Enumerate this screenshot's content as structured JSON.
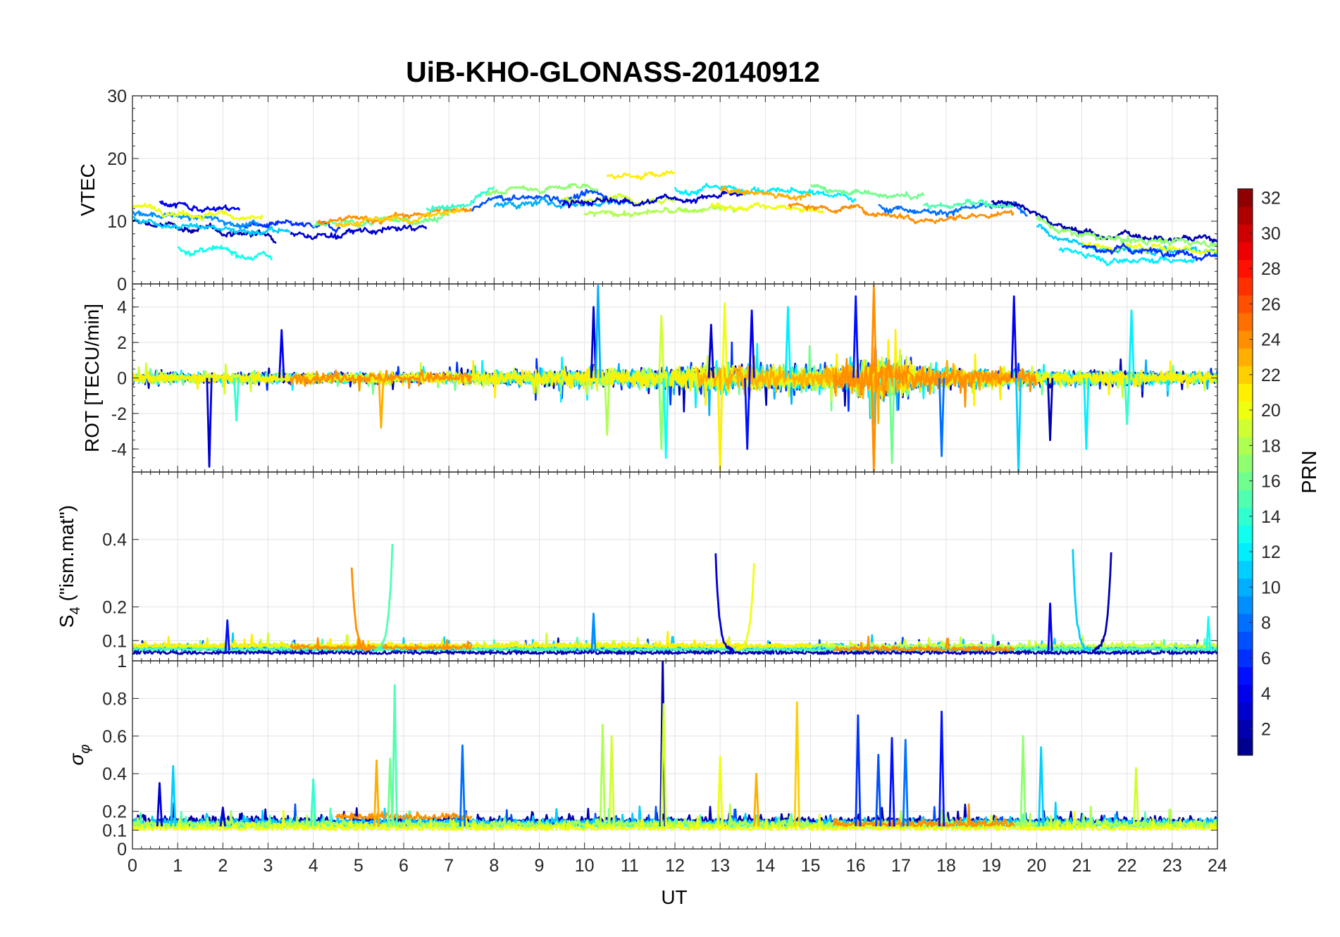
{
  "chart_data": {
    "type": "line",
    "title": "UiB-KHO-GLONASS-20140912",
    "x": {
      "label": "UT",
      "range": [
        0,
        24
      ],
      "ticks": [
        0,
        1,
        2,
        3,
        4,
        5,
        6,
        7,
        8,
        9,
        10,
        11,
        12,
        13,
        14,
        15,
        16,
        17,
        18,
        19,
        20,
        21,
        22,
        23,
        24
      ],
      "tick_labels": [
        "0",
        "1",
        "2",
        "3",
        "4",
        "5",
        "6",
        "7",
        "8",
        "9",
        "10",
        "11",
        "12",
        "13",
        "14",
        "15",
        "16",
        "17",
        "18",
        "19",
        "20",
        "21",
        "22",
        "23",
        "24"
      ]
    },
    "grid": true,
    "panels": [
      {
        "id": "vtec",
        "ylabel": "VTEC",
        "ylim": [
          0,
          30
        ],
        "yticks": [
          0,
          10,
          20,
          30
        ],
        "ytick_labels": [
          "0",
          "10",
          "20",
          "30"
        ],
        "baseline": [
          [
            0,
            11
          ],
          [
            2,
            9.5
          ],
          [
            4,
            8.5
          ],
          [
            6,
            9.5
          ],
          [
            7.5,
            11
          ],
          [
            8,
            13
          ],
          [
            10,
            13.5
          ],
          [
            12,
            14
          ],
          [
            13,
            14.5
          ],
          [
            14,
            14
          ],
          [
            16,
            13
          ],
          [
            17,
            12
          ],
          [
            18,
            11.5
          ],
          [
            19.5,
            12
          ],
          [
            20.5,
            8
          ],
          [
            21.5,
            6.5
          ],
          [
            22.5,
            6.5
          ],
          [
            24,
            6
          ]
        ],
        "noise": 0.8,
        "series": [
          {
            "prn": 2,
            "x": [
              0,
              3.2
            ],
            "offset": -1.2
          },
          {
            "prn": 4,
            "x": [
              0.6,
              2.4
            ],
            "offset": 2.5
          },
          {
            "prn": 6,
            "x": [
              2.3,
              4.6
            ],
            "offset": 0.3
          },
          {
            "prn": 9,
            "x": [
              0,
              2.8
            ],
            "offset": 0.5
          },
          {
            "prn": 11,
            "x": [
              0,
              3.5
            ],
            "offset": -0.6
          },
          {
            "prn": 13,
            "x": [
              1.0,
              3.1
            ],
            "offset": -4.5
          },
          {
            "prn": 20,
            "x": [
              0,
              2.9
            ],
            "offset": 1.5
          },
          {
            "prn": 16,
            "x": [
              4.0,
              7.0
            ],
            "offset": 0.5
          },
          {
            "prn": 24,
            "x": [
              4.1,
              7.5
            ],
            "offset": 1.2
          },
          {
            "prn": 22,
            "x": [
              4.5,
              7.3
            ],
            "offset": 0.8
          },
          {
            "prn": 14,
            "x": [
              6.5,
              8.0
            ],
            "offset": 2.0
          },
          {
            "prn": 3,
            "x": [
              3.5,
              6.5
            ],
            "offset": -0.8
          },
          {
            "prn": 7,
            "x": [
              7.5,
              10.5
            ],
            "offset": 0.5
          },
          {
            "prn": 17,
            "x": [
              7.8,
              10.3
            ],
            "offset": 2.0
          },
          {
            "prn": 10,
            "x": [
              8.0,
              11.0
            ],
            "offset": -0.5
          },
          {
            "prn": 19,
            "x": [
              9.5,
              12.0
            ],
            "offset": 0.0
          },
          {
            "prn": 21,
            "x": [
              10.5,
              12.0
            ],
            "offset": 3.5
          },
          {
            "prn": 18,
            "x": [
              10.0,
              13.5
            ],
            "offset": -2.5
          },
          {
            "prn": 3,
            "x": [
              9.5,
              13.5
            ],
            "offset": -0.5
          },
          {
            "prn": 12,
            "x": [
              12.0,
              16.0
            ],
            "offset": 1.0
          },
          {
            "prn": 20,
            "x": [
              12.8,
              15.3
            ],
            "offset": -2.0
          },
          {
            "prn": 23,
            "x": [
              13.0,
              15.0
            ],
            "offset": 0.5
          },
          {
            "prn": 16,
            "x": [
              15.0,
              17.5
            ],
            "offset": 2.0
          },
          {
            "prn": 24,
            "x": [
              14.5,
              19.5
            ],
            "offset": -1.0
          },
          {
            "prn": 8,
            "x": [
              16.5,
              19.8
            ],
            "offset": 0.3
          },
          {
            "prn": 15,
            "x": [
              17.5,
              19.5
            ],
            "offset": 1.0
          },
          {
            "prn": 2,
            "x": [
              19.0,
              24.0
            ],
            "offset": 1.2
          },
          {
            "prn": 11,
            "x": [
              20.0,
              24.0
            ],
            "offset": -0.8
          },
          {
            "prn": 17,
            "x": [
              20.0,
              24.0
            ],
            "offset": 0.5
          },
          {
            "prn": 12,
            "x": [
              20.5,
              23.5
            ],
            "offset": -2.5
          },
          {
            "prn": 20,
            "x": [
              21.0,
              24.0
            ],
            "offset": -0.5
          },
          {
            "prn": 6,
            "x": [
              21.0,
              24.0
            ],
            "offset": -1.2
          }
        ]
      },
      {
        "id": "rot",
        "ylabel": "ROT [TECU/min]",
        "ylim": [
          -5.3,
          5.3
        ],
        "yticks": [
          -4,
          -2,
          0,
          2,
          4
        ],
        "ytick_labels": [
          "-4",
          "-2",
          "0",
          "2",
          "4"
        ],
        "baseline": [
          [
            0,
            0
          ],
          [
            24,
            0
          ]
        ],
        "noise_profile": [
          [
            0,
            0.5
          ],
          [
            7,
            0.5
          ],
          [
            10,
            0.8
          ],
          [
            12,
            1.0
          ],
          [
            13,
            1.2
          ],
          [
            15.5,
            1.0
          ],
          [
            16.5,
            2.0
          ],
          [
            17.5,
            1.0
          ],
          [
            20,
            0.7
          ],
          [
            24,
            0.5
          ]
        ],
        "series": [
          {
            "prn": 2,
            "x": [
              0,
              24
            ]
          },
          {
            "prn": 6,
            "x": [
              0,
              24
            ]
          },
          {
            "prn": 10,
            "x": [
              8,
              24
            ]
          },
          {
            "prn": 12,
            "x": [
              0,
              24
            ]
          },
          {
            "prn": 16,
            "x": [
              0,
              24
            ]
          },
          {
            "prn": 19,
            "x": [
              0,
              24
            ]
          },
          {
            "prn": 21,
            "x": [
              0,
              24
            ]
          },
          {
            "prn": 24,
            "x": [
              3.5,
              7.5
            ]
          },
          {
            "prn": 23,
            "x": [
              12.5,
              20
            ]
          },
          {
            "prn": 24,
            "x": [
              15.5,
              20
            ]
          }
        ],
        "spikes": [
          {
            "x": 1.7,
            "y": -5.0,
            "prn": 3
          },
          {
            "x": 3.3,
            "y": 2.7,
            "prn": 4
          },
          {
            "x": 2.3,
            "y": -2.4,
            "prn": 14
          },
          {
            "x": 5.5,
            "y": -2.8,
            "prn": 23
          },
          {
            "x": 10.2,
            "y": 4.0,
            "prn": 3
          },
          {
            "x": 10.3,
            "y": 5.2,
            "prn": 10
          },
          {
            "x": 10.5,
            "y": -3.2,
            "prn": 18
          },
          {
            "x": 11.7,
            "y": 3.5,
            "prn": 19
          },
          {
            "x": 11.7,
            "y": -4.0,
            "prn": 17
          },
          {
            "x": 11.8,
            "y": -4.5,
            "prn": 13
          },
          {
            "x": 12.8,
            "y": 3.0,
            "prn": 3
          },
          {
            "x": 13.0,
            "y": -5.3,
            "prn": 21
          },
          {
            "x": 13.1,
            "y": 4.2,
            "prn": 20
          },
          {
            "x": 13.6,
            "y": -4.0,
            "prn": 5
          },
          {
            "x": 13.7,
            "y": 3.8,
            "prn": 4
          },
          {
            "x": 14.5,
            "y": 4.0,
            "prn": 12
          },
          {
            "x": 16.0,
            "y": 4.6,
            "prn": 5
          },
          {
            "x": 16.4,
            "y": 5.2,
            "prn": 24
          },
          {
            "x": 16.4,
            "y": -5.3,
            "prn": 24
          },
          {
            "x": 16.8,
            "y": -4.8,
            "prn": 16
          },
          {
            "x": 17.9,
            "y": -4.4,
            "prn": 8
          },
          {
            "x": 19.5,
            "y": 4.6,
            "prn": 4
          },
          {
            "x": 19.6,
            "y": -5.3,
            "prn": 11
          },
          {
            "x": 20.3,
            "y": -3.5,
            "prn": 2
          },
          {
            "x": 21.1,
            "y": -4.0,
            "prn": 12
          },
          {
            "x": 22.1,
            "y": 3.8,
            "prn": 12
          },
          {
            "x": 22.0,
            "y": -2.6,
            "prn": 14
          }
        ]
      },
      {
        "id": "s4",
        "ylabel_main": "S",
        "ylabel_sub": "4",
        "ylabel_tail": " (\"ism.mat\")",
        "ylim": [
          0.04,
          0.6
        ],
        "yticks": [
          0.1,
          0.2,
          0.4
        ],
        "ytick_labels": [
          "0.1",
          "0.2",
          "0.4"
        ],
        "baseline": [
          [
            0,
            0.07
          ],
          [
            24,
            0.07
          ]
        ],
        "noise": 0.012,
        "series": [
          {
            "prn": 2,
            "x": [
              0,
              24
            ],
            "offset": -0.01
          },
          {
            "prn": 7,
            "x": [
              0,
              24
            ],
            "offset": 0.0
          },
          {
            "prn": 11,
            "x": [
              0,
              24
            ],
            "offset": 0.005
          },
          {
            "prn": 15,
            "x": [
              0,
              24
            ],
            "offset": 0.0
          },
          {
            "prn": 19,
            "x": [
              0,
              24
            ],
            "offset": 0.01
          },
          {
            "prn": 21,
            "x": [
              0,
              15
            ],
            "offset": 0.01
          },
          {
            "prn": 24,
            "x": [
              3.5,
              7.5
            ],
            "offset": 0.005
          },
          {
            "prn": 24,
            "x": [
              15.5,
              19.5
            ],
            "offset": 0.0
          }
        ],
        "peaks": [
          {
            "x": 4.85,
            "y": 0.32,
            "prn": 24,
            "shape": "decay"
          },
          {
            "x": 5.75,
            "y": 0.39,
            "prn": 15,
            "shape": "rise"
          },
          {
            "x": 12.9,
            "y": 0.36,
            "prn": 3,
            "shape": "decay"
          },
          {
            "x": 13.75,
            "y": 0.33,
            "prn": 20,
            "shape": "rise"
          },
          {
            "x": 20.8,
            "y": 0.37,
            "prn": 11,
            "shape": "decay"
          },
          {
            "x": 21.65,
            "y": 0.36,
            "prn": 2,
            "shape": "rise"
          },
          {
            "x": 20.3,
            "y": 0.21,
            "prn": 4,
            "shape": "spike"
          },
          {
            "x": 2.1,
            "y": 0.16,
            "prn": 5,
            "shape": "spike"
          },
          {
            "x": 10.2,
            "y": 0.18,
            "prn": 9,
            "shape": "spike"
          },
          {
            "x": 23.8,
            "y": 0.17,
            "prn": 13,
            "shape": "spike"
          }
        ]
      },
      {
        "id": "sigma",
        "ylabel_main": "σ",
        "ylabel_sub": "φ",
        "ylim": [
          0,
          1
        ],
        "yticks": [
          0,
          0.1,
          0.2,
          0.4,
          0.6,
          0.8,
          1
        ],
        "ytick_labels": [
          "0",
          "0.1",
          "0.2",
          "0.4",
          "0.6",
          "0.8",
          "1"
        ],
        "baseline": [
          [
            0,
            0.12
          ],
          [
            24,
            0.12
          ]
        ],
        "noise": 0.03,
        "series": [
          {
            "prn": 2,
            "x": [
              0,
              24
            ],
            "offset": 0.02
          },
          {
            "prn": 7,
            "x": [
              0,
              24
            ],
            "offset": 0.0
          },
          {
            "prn": 11,
            "x": [
              0,
              24
            ],
            "offset": 0.01
          },
          {
            "prn": 15,
            "x": [
              0,
              24
            ],
            "offset": -0.01
          },
          {
            "prn": 18,
            "x": [
              0,
              24
            ],
            "offset": 0.0
          },
          {
            "prn": 20,
            "x": [
              0,
              24
            ],
            "offset": -0.02
          },
          {
            "prn": 24,
            "x": [
              4.5,
              7.5
            ],
            "offset": 0.04
          },
          {
            "prn": 24,
            "x": [
              15.5,
              19.5
            ],
            "offset": 0.0
          }
        ],
        "spikes": [
          {
            "x": 0.9,
            "y": 0.44,
            "prn": 11
          },
          {
            "x": 5.8,
            "y": 0.87,
            "prn": 15
          },
          {
            "x": 5.7,
            "y": 0.48,
            "prn": 16
          },
          {
            "x": 4.0,
            "y": 0.37,
            "prn": 14
          },
          {
            "x": 5.4,
            "y": 0.47,
            "prn": 23
          },
          {
            "x": 7.3,
            "y": 0.55,
            "prn": 8
          },
          {
            "x": 10.4,
            "y": 0.66,
            "prn": 18
          },
          {
            "x": 10.6,
            "y": 0.6,
            "prn": 19
          },
          {
            "x": 11.73,
            "y": 1.0,
            "prn": 2
          },
          {
            "x": 11.75,
            "y": 0.77,
            "prn": 19
          },
          {
            "x": 13.0,
            "y": 0.49,
            "prn": 20
          },
          {
            "x": 13.8,
            "y": 0.4,
            "prn": 23
          },
          {
            "x": 14.7,
            "y": 0.78,
            "prn": 22
          },
          {
            "x": 16.05,
            "y": 0.71,
            "prn": 6
          },
          {
            "x": 16.5,
            "y": 0.5,
            "prn": 7
          },
          {
            "x": 16.8,
            "y": 0.59,
            "prn": 5
          },
          {
            "x": 17.1,
            "y": 0.58,
            "prn": 8
          },
          {
            "x": 17.9,
            "y": 0.73,
            "prn": 5
          },
          {
            "x": 19.7,
            "y": 0.6,
            "prn": 17
          },
          {
            "x": 20.1,
            "y": 0.54,
            "prn": 11
          },
          {
            "x": 22.2,
            "y": 0.43,
            "prn": 19
          },
          {
            "x": 2.0,
            "y": 0.22,
            "prn": 3
          },
          {
            "x": 0.6,
            "y": 0.35,
            "prn": 3
          }
        ]
      }
    ],
    "colorbar": {
      "label": "PRN",
      "range": [
        1,
        32
      ],
      "ticks": [
        2,
        4,
        6,
        8,
        10,
        12,
        14,
        16,
        18,
        20,
        22,
        24,
        26,
        28,
        30,
        32
      ],
      "tick_labels": [
        "2",
        "4",
        "6",
        "8",
        "10",
        "12",
        "14",
        "16",
        "18",
        "20",
        "22",
        "24",
        "26",
        "28",
        "30",
        "32"
      ],
      "colormap": "jet",
      "levels": 32
    }
  }
}
